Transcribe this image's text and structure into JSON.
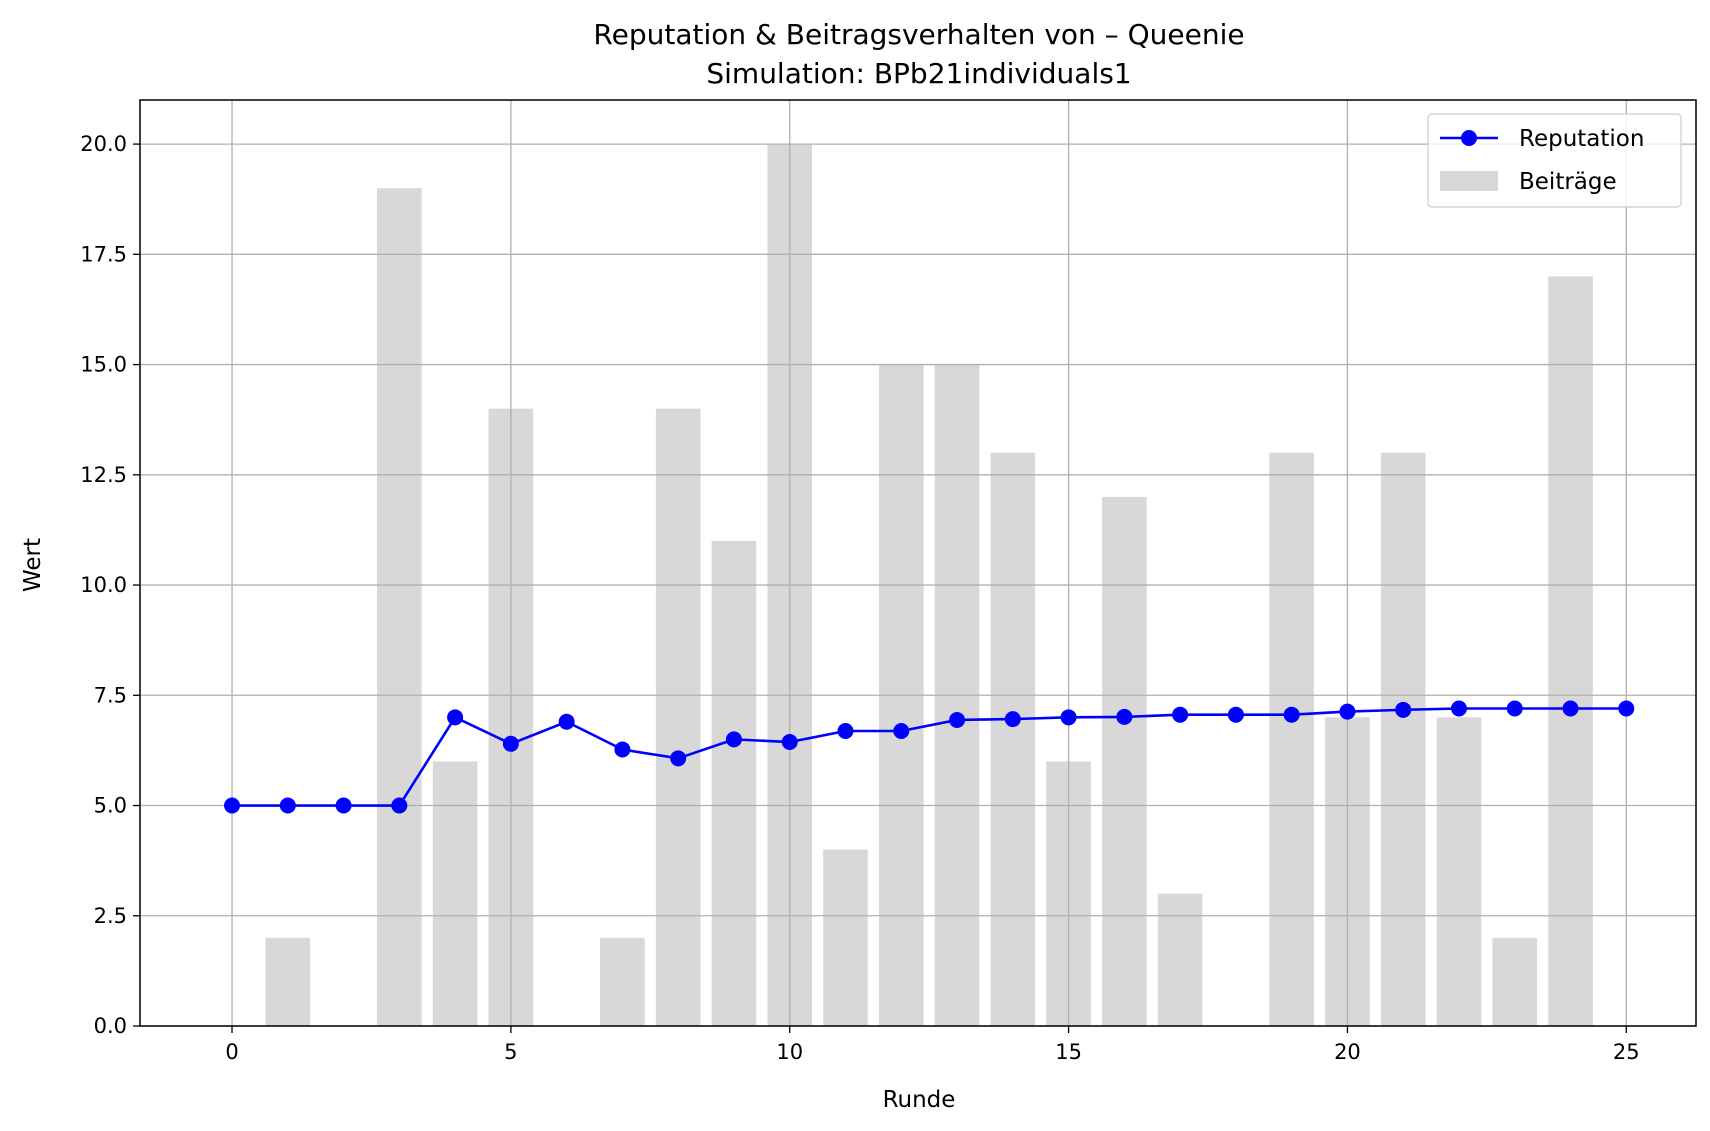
{
  "chart_data": {
    "type": "bar+line",
    "title": "Reputation & Beitragsverhalten von – Queenie",
    "subtitle": "Simulation: BPb21individuals1",
    "xlabel": "Runde",
    "ylabel": "Wert",
    "xlim": [
      -1.65,
      26.25
    ],
    "ylim": [
      0,
      21
    ],
    "xticks": [
      0,
      5,
      10,
      15,
      20,
      25
    ],
    "yticks": [
      0.0,
      2.5,
      5.0,
      7.5,
      10.0,
      12.5,
      15.0,
      17.5,
      20.0
    ],
    "ytick_labels": [
      "0.0",
      "2.5",
      "5.0",
      "7.5",
      "10.0",
      "12.5",
      "15.0",
      "17.5",
      "20.0"
    ],
    "grid": true,
    "legend_position": "top-right",
    "x": [
      0,
      1,
      2,
      3,
      4,
      5,
      6,
      7,
      8,
      9,
      10,
      11,
      12,
      13,
      14,
      15,
      16,
      17,
      18,
      19,
      20,
      21,
      22,
      23,
      24,
      25
    ],
    "series": [
      {
        "name": "Reputation",
        "kind": "line",
        "marker": "circle",
        "color": "#0000ff",
        "values": [
          5.0,
          5.0,
          5.0,
          5.0,
          7.0,
          6.4,
          6.9,
          6.27,
          6.07,
          6.5,
          6.44,
          6.69,
          6.69,
          6.94,
          6.96,
          7.0,
          7.01,
          7.06,
          7.06,
          7.06,
          7.13,
          7.17,
          7.2,
          7.2,
          7.2,
          7.2
        ]
      },
      {
        "name": "Beiträge",
        "kind": "bar",
        "color": "#d8d8d8",
        "values": [
          0,
          2,
          0,
          19,
          6,
          14,
          0,
          2,
          14,
          11,
          20,
          4,
          15,
          15,
          13,
          6,
          12,
          3,
          0,
          13,
          7,
          13,
          7,
          2,
          17,
          0
        ]
      }
    ]
  }
}
